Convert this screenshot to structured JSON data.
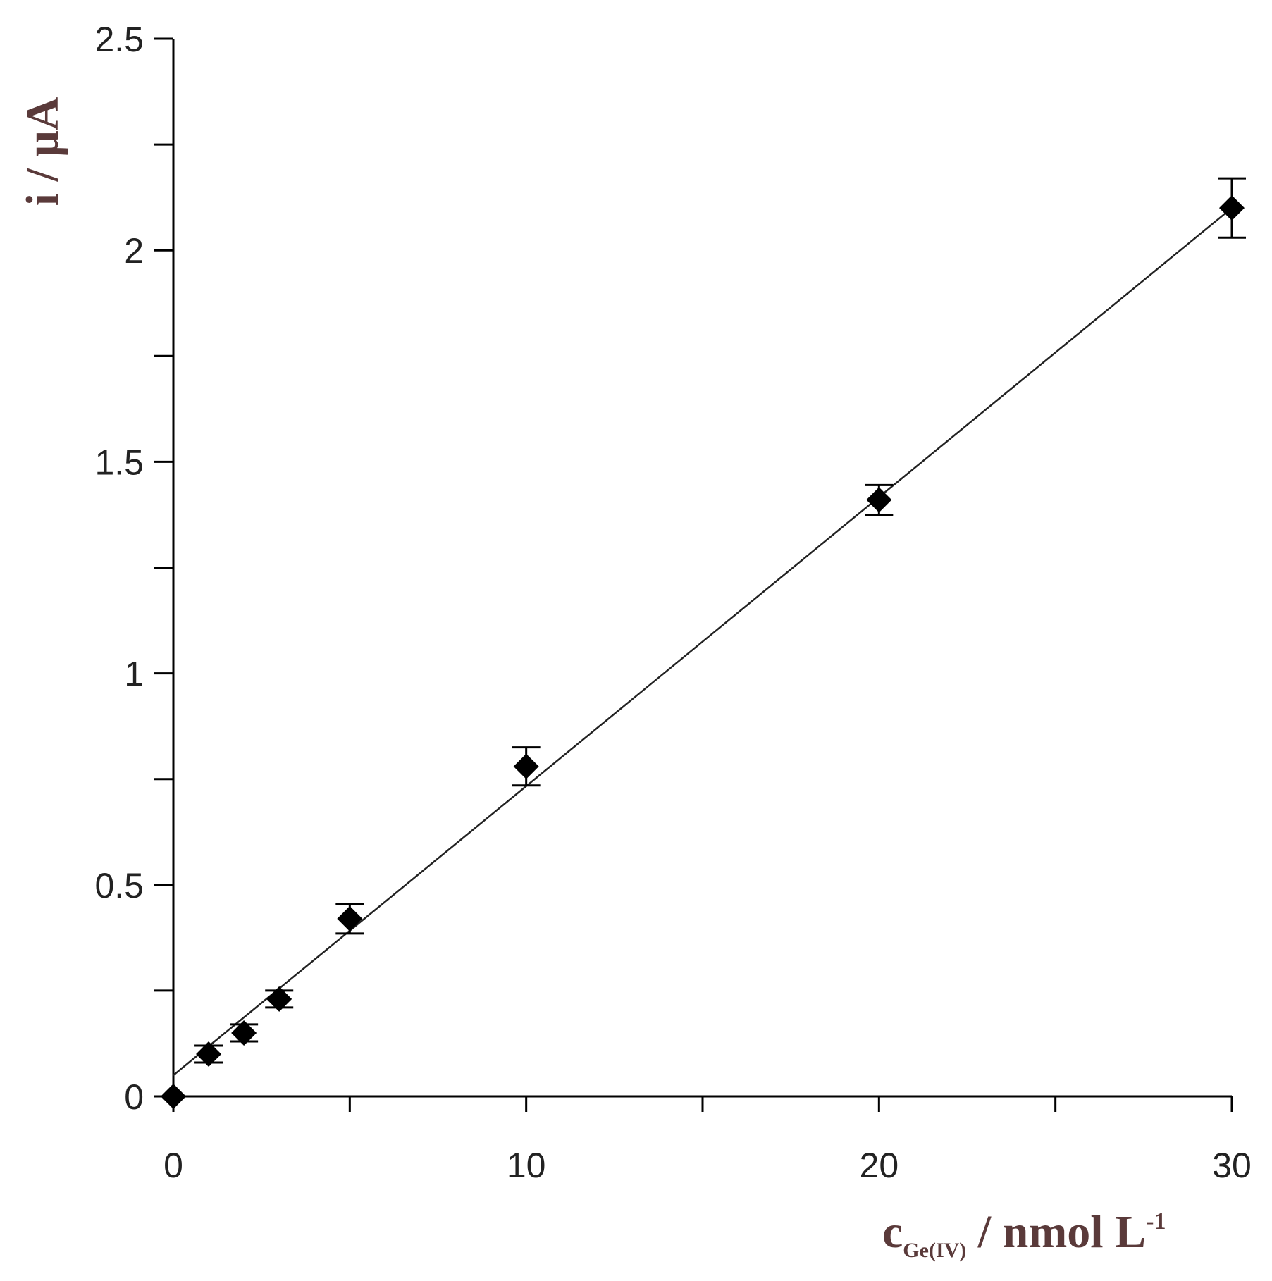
{
  "chart_data": {
    "type": "scatter",
    "title": "",
    "xlabel": {
      "main": "c",
      "subscript": "Ge(IV)",
      "unit": " / nmol L",
      "superscript": "-1"
    },
    "ylabel": "i / μA",
    "xlim": [
      0,
      30
    ],
    "ylim": [
      0,
      2.5
    ],
    "x_ticks": [
      0,
      10,
      20,
      30
    ],
    "x_tick_labels": [
      "0",
      "10",
      "20",
      "30"
    ],
    "x_minor_ticks": [
      5,
      15,
      25
    ],
    "y_ticks": [
      0,
      0.5,
      1,
      1.5,
      2,
      2.5
    ],
    "y_tick_labels": [
      "0",
      "0.5",
      "1",
      "1.5",
      "2",
      "2.5"
    ],
    "y_minor_ticks": [
      0.25,
      0.75,
      1.25,
      1.75,
      2.25
    ],
    "grid": false,
    "legend": "none",
    "marker": "diamond",
    "marker_color": "#000000",
    "series": [
      {
        "x": [
          0,
          1,
          2,
          3,
          5,
          10,
          20,
          30
        ],
        "y": [
          0,
          0.1,
          0.15,
          0.23,
          0.42,
          0.78,
          1.41,
          2.1
        ],
        "error": [
          0,
          0.02,
          0.02,
          0.02,
          0.035,
          0.045,
          0.035,
          0.07
        ]
      }
    ],
    "fit_line": {
      "x": [
        0,
        30
      ],
      "y": [
        0.05,
        2.1
      ]
    }
  }
}
